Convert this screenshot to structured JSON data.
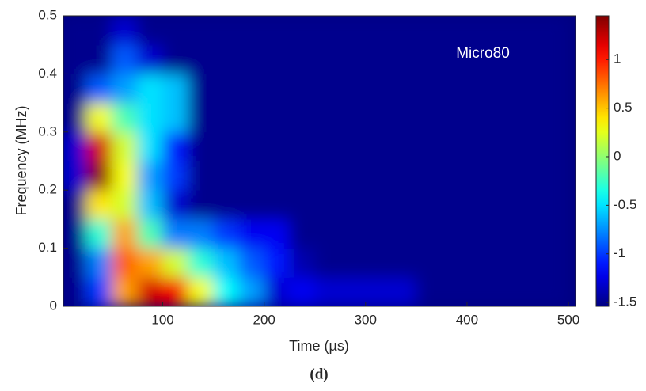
{
  "chart_data": {
    "type": "heatmap",
    "annotation": "Micro80",
    "xlabel": "Time (µs)",
    "ylabel": "Frequency (MHz)",
    "caption": "(d)",
    "colormap": "jet",
    "xlim": [
      2,
      507
    ],
    "xticks": [
      100,
      200,
      300,
      400,
      500
    ],
    "ylim": [
      0,
      0.5
    ],
    "yticks": [
      0,
      0.1,
      0.2,
      0.3,
      0.4,
      0.5
    ],
    "clim": [
      -1.54,
      1.45
    ],
    "cticks": [
      -1.5,
      -1,
      -0.5,
      0,
      0.5,
      1
    ],
    "x": [
      12.5,
      37.5,
      62.5,
      87.5,
      112.5,
      137.5,
      162.5,
      187.5,
      212.5,
      237.5,
      262.5,
      287.5,
      312.5,
      337.5,
      362.5,
      387.5,
      412.5,
      437.5,
      462.5,
      487.5
    ],
    "y": [
      0.025,
      0.075,
      0.125,
      0.175,
      0.225,
      0.275,
      0.325,
      0.375,
      0.425,
      0.475
    ],
    "z": [
      [
        -1.5,
        -1.0,
        0.6,
        1.2,
        1.1,
        0.3,
        -0.4,
        -0.7,
        -1.3,
        -1.2,
        -1.3,
        -1.3,
        -1.3,
        -1.3,
        -1.5,
        -1.5,
        -1.5,
        -1.5,
        -1.5,
        -1.5
      ],
      [
        -1.5,
        -0.8,
        0.8,
        0.6,
        0.2,
        -0.3,
        -0.6,
        -0.9,
        -1.1,
        -1.4,
        -1.5,
        -1.5,
        -1.5,
        -1.5,
        -1.5,
        -1.5,
        -1.5,
        -1.5,
        -1.5,
        -1.5
      ],
      [
        -1.5,
        -0.3,
        0.6,
        -0.2,
        -0.8,
        -0.8,
        -1.0,
        -1.2,
        -1.2,
        -1.5,
        -1.5,
        -1.5,
        -1.5,
        -1.5,
        -1.5,
        -1.5,
        -1.5,
        -1.5,
        -1.5,
        -1.5
      ],
      [
        -1.5,
        0.4,
        0.2,
        -0.6,
        -1.3,
        -1.5,
        -1.5,
        -1.5,
        -1.5,
        -1.5,
        -1.5,
        -1.5,
        -1.5,
        -1.5,
        -1.5,
        -1.5,
        -1.5,
        -1.5,
        -1.5,
        -1.5
      ],
      [
        -1.3,
        1.4,
        0.3,
        -0.7,
        -1.0,
        -1.5,
        -1.5,
        -1.5,
        -1.5,
        -1.5,
        -1.5,
        -1.5,
        -1.5,
        -1.5,
        -1.5,
        -1.5,
        -1.5,
        -1.5,
        -1.5,
        -1.5
      ],
      [
        -1.3,
        1.2,
        0.2,
        -0.5,
        -1.1,
        -1.5,
        -1.5,
        -1.5,
        -1.5,
        -1.5,
        -1.5,
        -1.5,
        -1.5,
        -1.5,
        -1.5,
        -1.5,
        -1.5,
        -1.5,
        -1.5,
        -1.5
      ],
      [
        -1.5,
        0.3,
        -0.2,
        -0.5,
        -0.6,
        -1.5,
        -1.5,
        -1.5,
        -1.5,
        -1.5,
        -1.5,
        -1.5,
        -1.5,
        -1.5,
        -1.5,
        -1.5,
        -1.5,
        -1.5,
        -1.5,
        -1.5
      ],
      [
        -1.5,
        -0.9,
        -0.7,
        -0.5,
        -0.6,
        -1.5,
        -1.5,
        -1.5,
        -1.5,
        -1.5,
        -1.5,
        -1.5,
        -1.5,
        -1.5,
        -1.5,
        -1.5,
        -1.5,
        -1.5,
        -1.5,
        -1.5
      ],
      [
        -1.5,
        -1.5,
        -0.9,
        -1.3,
        -1.5,
        -1.5,
        -1.5,
        -1.5,
        -1.5,
        -1.5,
        -1.5,
        -1.5,
        -1.5,
        -1.5,
        -1.5,
        -1.5,
        -1.5,
        -1.5,
        -1.5,
        -1.5
      ],
      [
        -1.5,
        -1.5,
        -1.3,
        -1.5,
        -1.5,
        -1.5,
        -1.5,
        -1.5,
        -1.5,
        -1.5,
        -1.5,
        -1.5,
        -1.5,
        -1.5,
        -1.5,
        -1.5,
        -1.5,
        -1.5,
        -1.5,
        -1.5
      ]
    ]
  }
}
